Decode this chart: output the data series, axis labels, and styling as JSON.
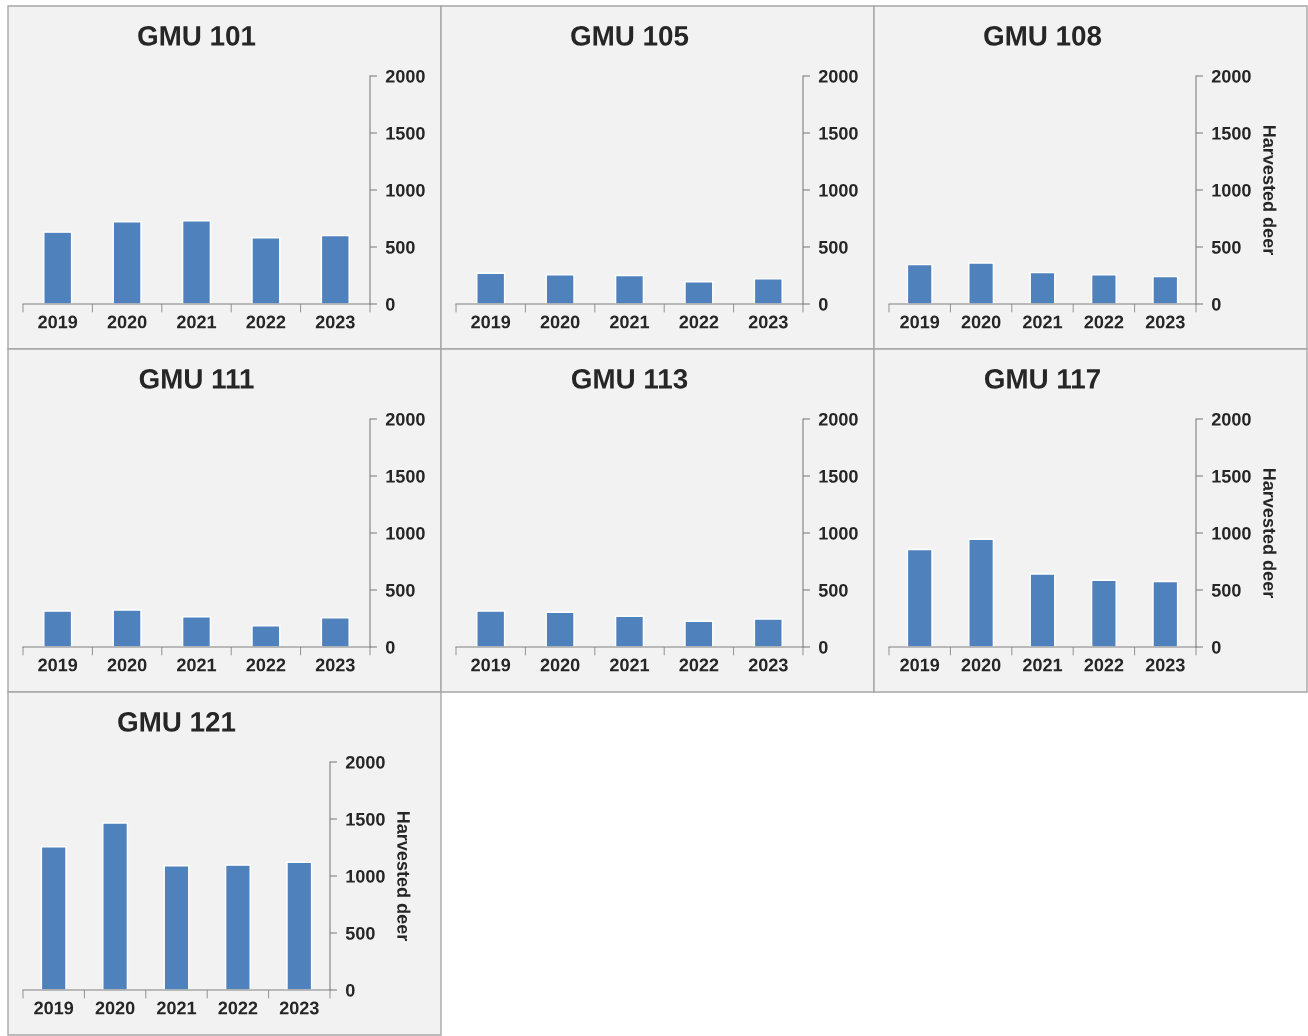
{
  "chart_data": [
    {
      "type": "bar",
      "title": "GMU 101",
      "categories": [
        "2019",
        "2020",
        "2021",
        "2022",
        "2023"
      ],
      "values": [
        630,
        720,
        730,
        580,
        600
      ],
      "color": "#4f81bd",
      "ylim": [
        0,
        2000
      ],
      "yticks": [
        0,
        500,
        1000,
        1500,
        2000
      ],
      "grid": false,
      "legend": false
    },
    {
      "type": "bar",
      "title": "GMU 105",
      "categories": [
        "2019",
        "2020",
        "2021",
        "2022",
        "2023"
      ],
      "values": [
        270,
        255,
        250,
        195,
        220
      ],
      "color": "#4f81bd",
      "ylim": [
        0,
        2000
      ],
      "yticks": [
        0,
        500,
        1000,
        1500,
        2000
      ],
      "grid": false,
      "legend": false
    },
    {
      "type": "bar",
      "title": "GMU 108",
      "ylabel": "Harvested deer",
      "categories": [
        "2019",
        "2020",
        "2021",
        "2022",
        "2023"
      ],
      "values": [
        345,
        360,
        275,
        255,
        240
      ],
      "color": "#4f81bd",
      "ylim": [
        0,
        2000
      ],
      "yticks": [
        0,
        500,
        1000,
        1500,
        2000
      ],
      "grid": false,
      "legend": false
    },
    {
      "type": "bar",
      "title": "GMU 111",
      "categories": [
        "2019",
        "2020",
        "2021",
        "2022",
        "2023"
      ],
      "values": [
        315,
        325,
        265,
        185,
        255
      ],
      "color": "#4f81bd",
      "ylim": [
        0,
        2000
      ],
      "yticks": [
        0,
        500,
        1000,
        1500,
        2000
      ],
      "grid": false,
      "legend": false
    },
    {
      "type": "bar",
      "title": "GMU 113",
      "categories": [
        "2019",
        "2020",
        "2021",
        "2022",
        "2023"
      ],
      "values": [
        315,
        305,
        270,
        225,
        245
      ],
      "color": "#4f81bd",
      "ylim": [
        0,
        2000
      ],
      "yticks": [
        0,
        500,
        1000,
        1500,
        2000
      ],
      "grid": false,
      "legend": false
    },
    {
      "type": "bar",
      "title": "GMU 117",
      "ylabel": "Harvested deer",
      "categories": [
        "2019",
        "2020",
        "2021",
        "2022",
        "2023"
      ],
      "values": [
        855,
        945,
        640,
        585,
        575
      ],
      "color": "#4f81bd",
      "ylim": [
        0,
        2000
      ],
      "yticks": [
        0,
        500,
        1000,
        1500,
        2000
      ],
      "grid": false,
      "legend": false
    },
    {
      "type": "bar",
      "title": "GMU 121",
      "ylabel": "Harvested deer",
      "categories": [
        "2019",
        "2020",
        "2021",
        "2022",
        "2023"
      ],
      "values": [
        1255,
        1465,
        1090,
        1095,
        1120
      ],
      "color": "#4f81bd",
      "ylim": [
        0,
        2000
      ],
      "yticks": [
        0,
        500,
        1000,
        1500,
        2000
      ],
      "grid": false,
      "legend": false
    }
  ]
}
